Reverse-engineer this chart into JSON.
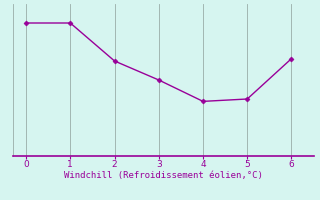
{
  "x": [
    0,
    1,
    2,
    3,
    4,
    5,
    6
  ],
  "y": [
    2.8,
    2.8,
    2.0,
    1.6,
    1.15,
    1.2,
    2.05
  ],
  "line_color": "#990099",
  "marker": "D",
  "marker_size": 2.5,
  "line_width": 1.0,
  "background_color": "#d6f5f0",
  "grid_color": "#9aada8",
  "xlabel": "Windchill (Refroidissement éolien,°C)",
  "xlabel_color": "#990099",
  "xlabel_fontsize": 6.5,
  "tick_color": "#990099",
  "tick_fontsize": 6.5,
  "spine_color": "#990099",
  "xlim": [
    -0.3,
    6.5
  ],
  "ylim": [
    0.0,
    3.2
  ],
  "xticks": [
    0,
    1,
    2,
    3,
    4,
    5,
    6
  ]
}
